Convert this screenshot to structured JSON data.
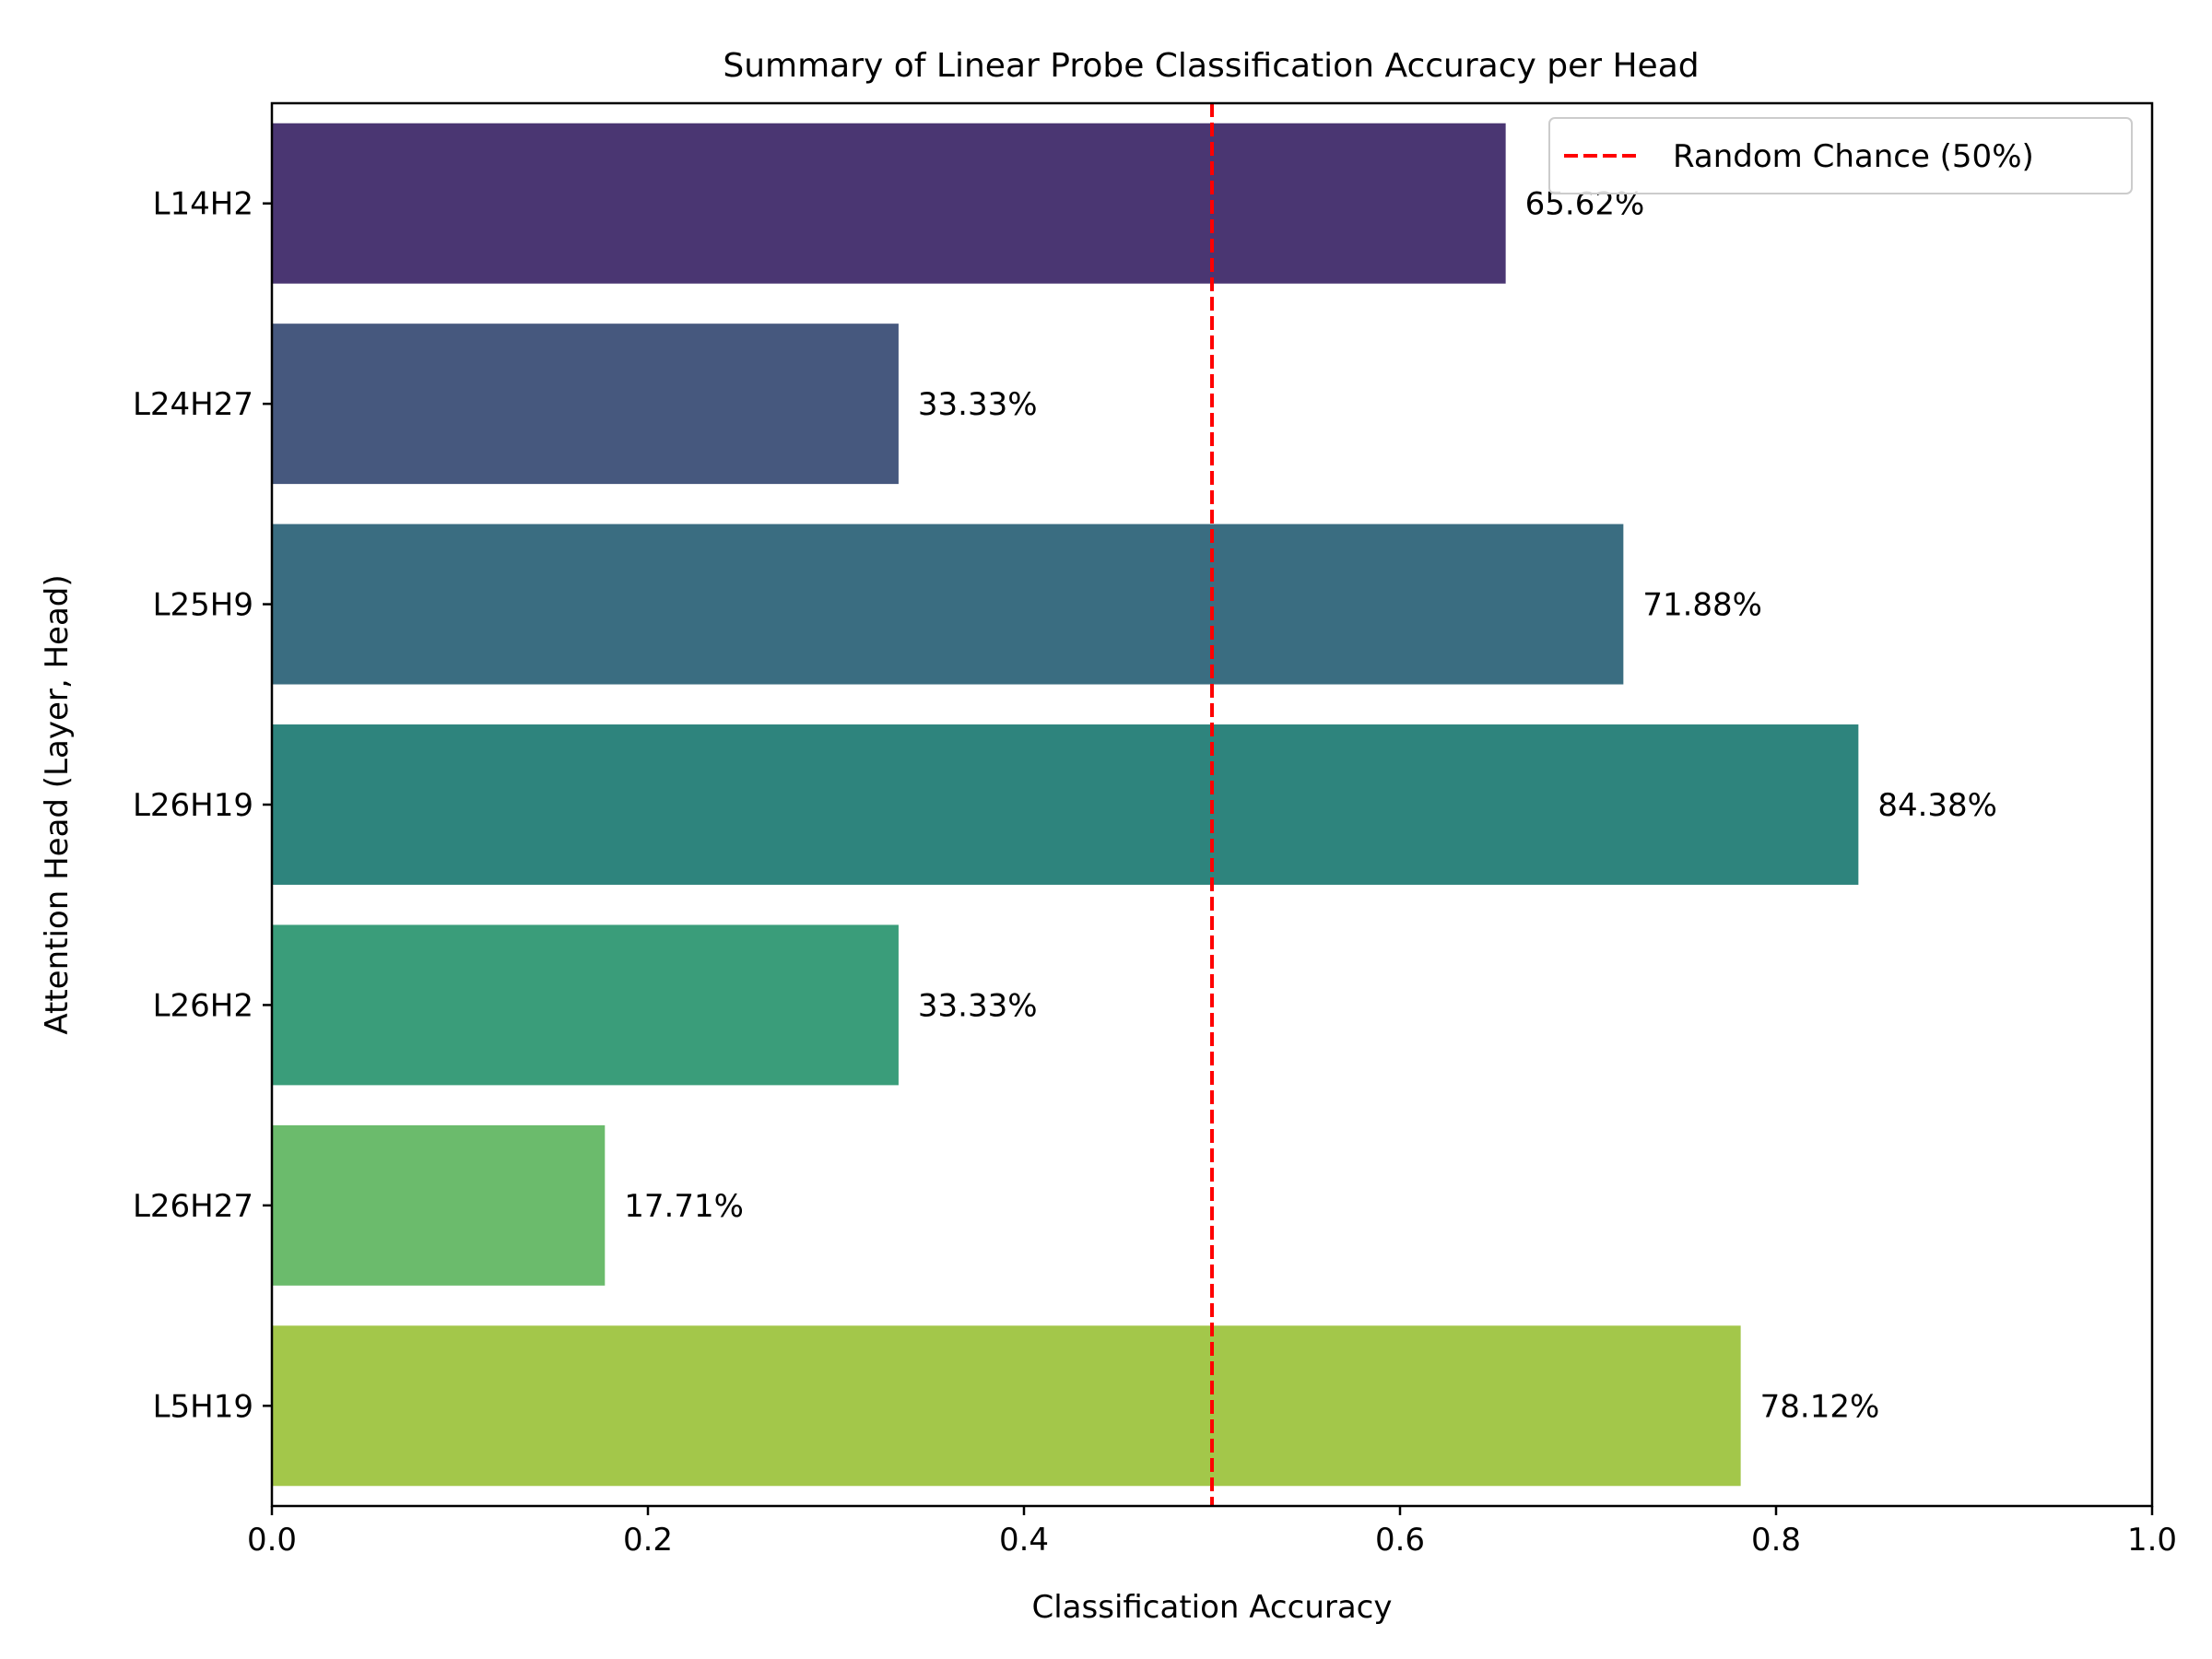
{
  "chart_data": {
    "type": "bar",
    "orientation": "horizontal",
    "title": "Summary of Linear Probe Classification Accuracy per Head",
    "xlabel": "Classification Accuracy",
    "ylabel": "Attention Head (Layer, Head)",
    "xlim": [
      0,
      1
    ],
    "xticks": [
      "0.0",
      "0.2",
      "0.4",
      "0.6",
      "0.8",
      "1.0"
    ],
    "grid": false,
    "legend_position": "top-right",
    "categories": [
      "L14H2",
      "L24H27",
      "L25H9",
      "L26H19",
      "L26H2",
      "L26H27",
      "L5H19"
    ],
    "values": [
      0.6562,
      0.3333,
      0.7188,
      0.8438,
      0.3333,
      0.1771,
      0.7812
    ],
    "value_labels": [
      "65.62%",
      "33.33%",
      "71.88%",
      "84.38%",
      "33.33%",
      "17.71%",
      "78.12%"
    ],
    "colors": [
      "#4a3672",
      "#46587e",
      "#3a6d81",
      "#2e847d",
      "#3a9d7a",
      "#6bbb6c",
      "#a3c74a"
    ],
    "reference_line": {
      "value": 0.5,
      "label": "Random Chance (50%)",
      "color": "#ff0000",
      "style": "dashed"
    }
  }
}
